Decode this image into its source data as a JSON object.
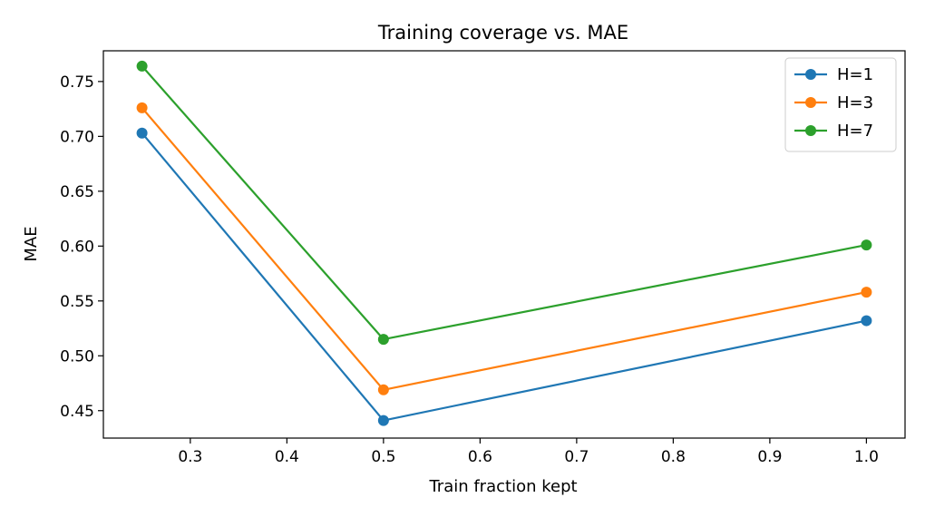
{
  "chart_data": {
    "type": "line",
    "title": "Training coverage vs. MAE",
    "xlabel": "Train fraction kept",
    "ylabel": "MAE",
    "x": [
      0.25,
      0.5,
      1.0
    ],
    "xlim": [
      0.21,
      1.04
    ],
    "ylim": [
      0.425,
      0.778
    ],
    "xticks": [
      0.3,
      0.4,
      0.5,
      0.6,
      0.7,
      0.8,
      0.9,
      1.0
    ],
    "xtick_labels": [
      "0.3",
      "0.4",
      "0.5",
      "0.6",
      "0.7",
      "0.8",
      "0.9",
      "1.0"
    ],
    "yticks": [
      0.45,
      0.5,
      0.55,
      0.6,
      0.65,
      0.7,
      0.75
    ],
    "ytick_labels": [
      "0.45",
      "0.50",
      "0.55",
      "0.60",
      "0.65",
      "0.70",
      "0.75"
    ],
    "grid": false,
    "legend_position": "top-right",
    "series": [
      {
        "name": "H=1",
        "color": "#1f77b4",
        "values": [
          0.703,
          0.441,
          0.532
        ]
      },
      {
        "name": "H=3",
        "color": "#ff7f0e",
        "values": [
          0.726,
          0.469,
          0.558
        ]
      },
      {
        "name": "H=7",
        "color": "#2ca02c",
        "values": [
          0.764,
          0.515,
          0.601
        ]
      }
    ]
  }
}
